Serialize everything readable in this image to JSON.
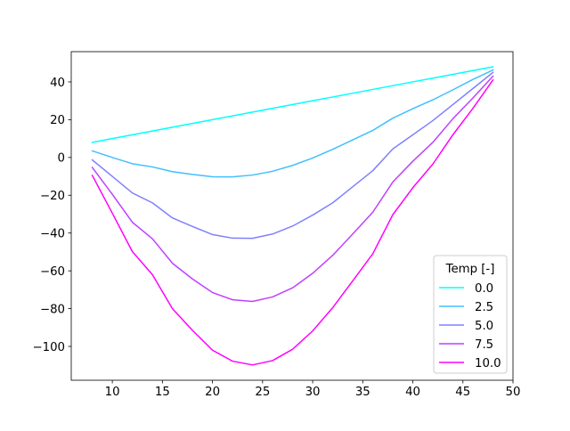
{
  "chart_data": {
    "type": "line",
    "title": "",
    "xlabel": "",
    "ylabel": "",
    "xlim": [
      5.9,
      50
    ],
    "ylim": [
      -117.9,
      56.0
    ],
    "xticks": [
      10,
      15,
      20,
      25,
      30,
      35,
      40,
      45,
      50
    ],
    "yticks": [
      -100,
      -80,
      -60,
      -40,
      -20,
      0,
      20,
      40
    ],
    "ytick_labels": [
      "−100",
      "−80",
      "−60",
      "−40",
      "−20",
      "0",
      "20",
      "40"
    ],
    "grid": false,
    "legend": {
      "title": "Temp [-]",
      "placement": "lower-right"
    },
    "x": [
      8,
      10,
      12,
      14,
      16,
      18,
      20,
      22,
      24,
      26,
      28,
      30,
      32,
      34,
      36,
      38,
      40,
      42,
      44,
      46,
      48
    ],
    "series": [
      {
        "name": "0.0",
        "color": "#00ffff",
        "values": [
          8,
          10,
          12,
          14,
          16,
          18,
          20,
          22,
          24,
          26,
          28,
          30,
          32,
          34,
          36,
          38,
          40,
          42,
          44,
          46,
          48
        ]
      },
      {
        "name": "2.5",
        "color": "#40bfff",
        "values": [
          3.5,
          0,
          -3.3,
          -5,
          -7.5,
          -9,
          -10.2,
          -10.3,
          -9.3,
          -7.3,
          -4.2,
          -0.3,
          4.3,
          9.3,
          14.3,
          20.8,
          25.8,
          30.5,
          35.8,
          41.3,
          46.3
        ]
      },
      {
        "name": "5.0",
        "color": "#8080ff",
        "values": [
          -1.3,
          -10,
          -18.8,
          -24,
          -32,
          -36.5,
          -40.8,
          -42.7,
          -42.8,
          -40.5,
          -36.3,
          -30.5,
          -24,
          -15.5,
          -7,
          4.5,
          12,
          19.5,
          28,
          36.5,
          45
        ]
      },
      {
        "name": "7.5",
        "color": "#bf40ff",
        "values": [
          -5.3,
          -19.5,
          -34.3,
          -43,
          -56,
          -64.3,
          -71.5,
          -75.3,
          -76.2,
          -73.8,
          -69,
          -61.3,
          -51.8,
          -40.5,
          -29,
          -13,
          -2,
          8,
          20.5,
          31.5,
          43
        ]
      },
      {
        "name": "10.0",
        "color": "#ff00ff",
        "values": [
          -9.5,
          -29.5,
          -49.8,
          -62,
          -80,
          -91.5,
          -102,
          -107.8,
          -109.8,
          -107.5,
          -101.5,
          -91.8,
          -79.5,
          -65.3,
          -51,
          -30.3,
          -16,
          -3.5,
          12,
          26,
          41
        ]
      }
    ]
  }
}
